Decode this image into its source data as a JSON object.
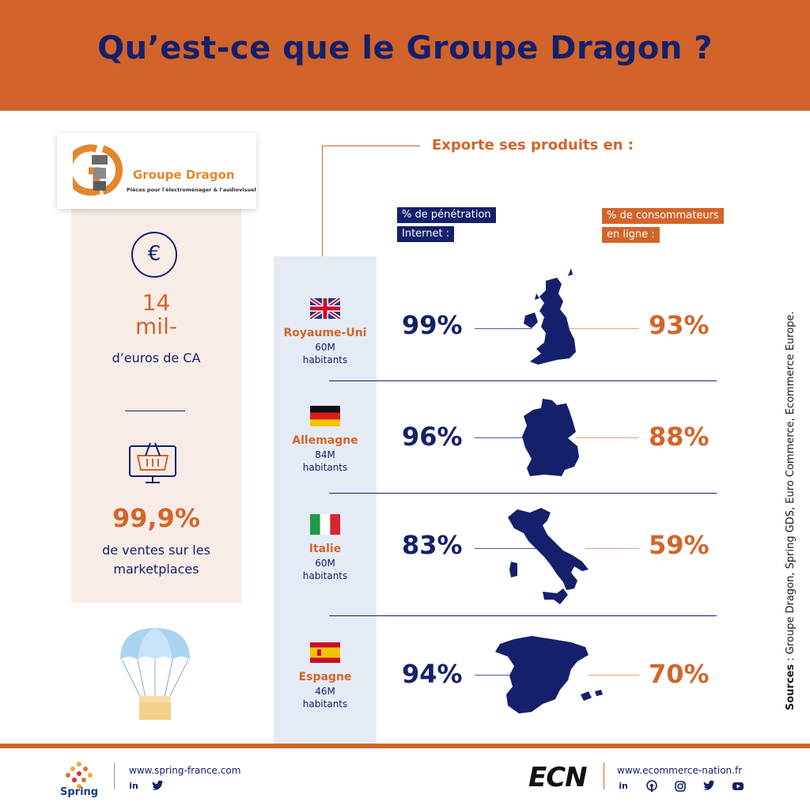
{
  "header": {
    "title": "Qu’est-ce que le Groupe Dragon ?"
  },
  "brand": {
    "name": "Groupe Dragon",
    "tagline": "Pièces pour l'électroménager & l'audiovisuel",
    "logo_letters": "GD"
  },
  "stats": {
    "ca_value": "14\nmil-",
    "ca_label": "d’euros de CA",
    "ca_icon": "euro-icon",
    "marketplace_value": "99,9%",
    "marketplace_label": "de ventes sur les marketplaces",
    "marketplace_icon": "shopping-basket-screen-icon"
  },
  "export": {
    "title": "Exporte ses produits en :",
    "legend_penetration": [
      "% de pénétration",
      "Internet :"
    ],
    "legend_consumers": [
      "% de consommateurs",
      "en ligne :"
    ]
  },
  "countries": [
    {
      "name": "Royaume-Uni",
      "population": "60M\nhabitants",
      "penetration": "99%",
      "consumers": "93%",
      "flag": "uk-flag-icon"
    },
    {
      "name": "Allemagne",
      "population": "84M\nhabitants",
      "penetration": "96%",
      "consumers": "88%",
      "flag": "germany-flag-icon"
    },
    {
      "name": "Italie",
      "population": "60M\nhabitants",
      "penetration": "83%",
      "consumers": "59%",
      "flag": "italy-flag-icon"
    },
    {
      "name": "Espagne",
      "population": "46M\nhabitants",
      "penetration": "94%",
      "consumers": "70%",
      "flag": "spain-flag-icon"
    }
  ],
  "sources": {
    "label": "Sources",
    "text": " : Groupe Dragon, Spring GDS, Euro Commerce, Ecommerce Europe."
  },
  "footer": {
    "spring_name": "Spring",
    "spring_url": "www.spring-france.com",
    "spring_socials": [
      "linkedin-icon",
      "twitter-icon"
    ],
    "ecn_logo": "ECN",
    "ecn_url": "www.ecommerce-nation.fr",
    "ecn_socials": [
      "linkedin-icon",
      "podcast-icon",
      "instagram-icon",
      "twitter-icon",
      "youtube-icon"
    ]
  },
  "colors": {
    "orange": "#d2632a",
    "navy": "#14206b",
    "light_blue": "#e5ebf5",
    "peach": "#f8ece6"
  }
}
